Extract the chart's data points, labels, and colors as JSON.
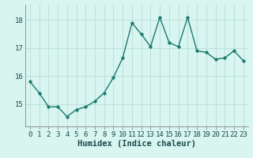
{
  "x": [
    0,
    1,
    2,
    3,
    4,
    5,
    6,
    7,
    8,
    9,
    10,
    11,
    12,
    13,
    14,
    15,
    16,
    17,
    18,
    19,
    20,
    21,
    22,
    23
  ],
  "y": [
    15.8,
    15.4,
    14.9,
    14.9,
    14.55,
    14.8,
    14.9,
    15.1,
    15.4,
    15.95,
    16.65,
    17.9,
    17.5,
    17.05,
    18.1,
    17.2,
    17.05,
    18.1,
    16.9,
    16.85,
    16.6,
    16.65,
    16.9,
    16.55
  ],
  "line_color": "#1a7a6e",
  "marker": "D",
  "marker_size": 1.8,
  "bg_color": "#d8f5f0",
  "grid_color": "#b8ddd8",
  "xlabel": "Humidex (Indice chaleur)",
  "ylim": [
    14.2,
    18.55
  ],
  "xlim": [
    -0.5,
    23.5
  ],
  "yticks": [
    15,
    16,
    17,
    18
  ],
  "xticks": [
    0,
    1,
    2,
    3,
    4,
    5,
    6,
    7,
    8,
    9,
    10,
    11,
    12,
    13,
    14,
    15,
    16,
    17,
    18,
    19,
    20,
    21,
    22,
    23
  ],
  "xlabel_fontsize": 7.5,
  "tick_fontsize": 6.5,
  "line_width": 1.0,
  "spine_color": "#888888"
}
